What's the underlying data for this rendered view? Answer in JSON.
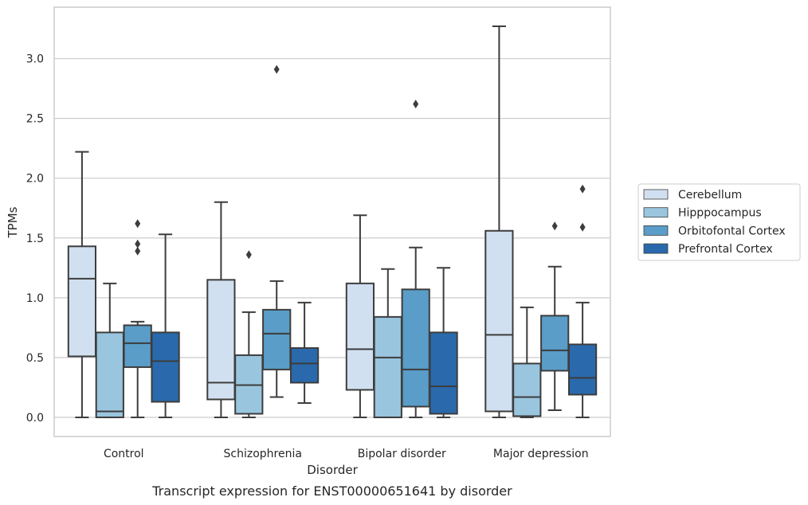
{
  "caption": "Transcript expression for ENST00000651641 by disorder",
  "chart_data": {
    "type": "box",
    "xlabel": "Disorder",
    "ylabel": "TPMs",
    "ylim": [
      -0.16,
      3.43
    ],
    "yticks": [
      0.0,
      0.5,
      1.0,
      1.5,
      2.0,
      2.5,
      3.0
    ],
    "ytick_labels": [
      "0.0",
      "0.5",
      "1.0",
      "1.5",
      "2.0",
      "2.5",
      "3.0"
    ],
    "grid": "horizontal",
    "legend_position": "right",
    "categories": [
      "Control",
      "Schizophrenia",
      "Bipolar disorder",
      "Major depression"
    ],
    "series": [
      {
        "name": "Cerebellum",
        "color": "#d1e0f0",
        "boxes": [
          {
            "whislo": 0.0,
            "q1": 0.51,
            "med": 1.16,
            "q3": 1.43,
            "whishi": 2.22,
            "fliers": []
          },
          {
            "whislo": 0.0,
            "q1": 0.15,
            "med": 0.29,
            "q3": 1.15,
            "whishi": 1.8,
            "fliers": []
          },
          {
            "whislo": 0.0,
            "q1": 0.23,
            "med": 0.57,
            "q3": 1.12,
            "whishi": 1.69,
            "fliers": []
          },
          {
            "whislo": 0.0,
            "q1": 0.05,
            "med": 0.69,
            "q3": 1.56,
            "whishi": 3.27,
            "fliers": []
          }
        ]
      },
      {
        "name": "Hipppocampus",
        "color": "#9ac5df",
        "boxes": [
          {
            "whislo": 0.0,
            "q1": 0.0,
            "med": 0.05,
            "q3": 0.71,
            "whishi": 1.12,
            "fliers": []
          },
          {
            "whislo": 0.0,
            "q1": 0.03,
            "med": 0.27,
            "q3": 0.52,
            "whishi": 0.88,
            "fliers": [
              1.36
            ]
          },
          {
            "whislo": 0.0,
            "q1": 0.0,
            "med": 0.5,
            "q3": 0.84,
            "whishi": 1.24,
            "fliers": []
          },
          {
            "whislo": 0.0,
            "q1": 0.01,
            "med": 0.17,
            "q3": 0.45,
            "whishi": 0.92,
            "fliers": []
          }
        ]
      },
      {
        "name": "Orbitofontal Cortex",
        "color": "#5a9dc8",
        "boxes": [
          {
            "whislo": 0.0,
            "q1": 0.42,
            "med": 0.62,
            "q3": 0.77,
            "whishi": 0.8,
            "fliers": [
              1.62,
              1.45,
              1.39
            ]
          },
          {
            "whislo": 0.17,
            "q1": 0.4,
            "med": 0.7,
            "q3": 0.9,
            "whishi": 1.14,
            "fliers": [
              2.91
            ]
          },
          {
            "whislo": 0.0,
            "q1": 0.09,
            "med": 0.4,
            "q3": 1.07,
            "whishi": 1.42,
            "fliers": [
              2.62
            ]
          },
          {
            "whislo": 0.06,
            "q1": 0.39,
            "med": 0.56,
            "q3": 0.85,
            "whishi": 1.26,
            "fliers": [
              1.6
            ]
          }
        ]
      },
      {
        "name": "Prefrontal Cortex",
        "color": "#2a69ac",
        "boxes": [
          {
            "whislo": 0.0,
            "q1": 0.13,
            "med": 0.47,
            "q3": 0.71,
            "whishi": 1.53,
            "fliers": []
          },
          {
            "whislo": 0.12,
            "q1": 0.29,
            "med": 0.45,
            "q3": 0.58,
            "whishi": 0.96,
            "fliers": []
          },
          {
            "whislo": 0.0,
            "q1": 0.03,
            "med": 0.26,
            "q3": 0.71,
            "whishi": 1.25,
            "fliers": []
          },
          {
            "whislo": 0.0,
            "q1": 0.19,
            "med": 0.33,
            "q3": 0.61,
            "whishi": 0.96,
            "fliers": [
              1.91,
              1.59
            ]
          }
        ]
      }
    ]
  }
}
